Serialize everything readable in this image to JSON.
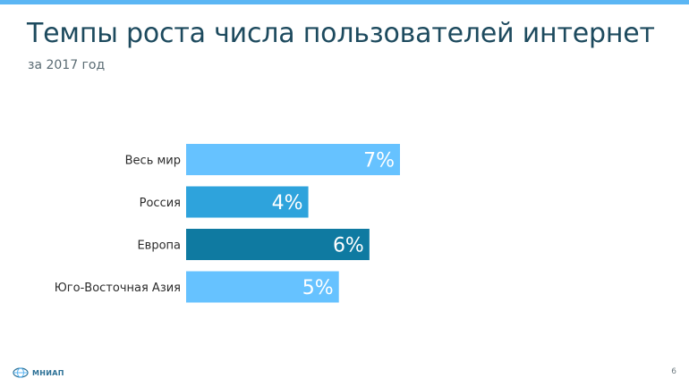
{
  "header": {
    "title": "Темпы роста числа пользователей интернет",
    "subtitle": "за 2017 год"
  },
  "chart_data": {
    "type": "bar",
    "orientation": "horizontal",
    "categories": [
      "Весь мир",
      "Россия",
      "Европа",
      "Юго-Восточная Азия"
    ],
    "values": [
      7,
      4,
      6,
      5
    ],
    "data_labels": [
      "7%",
      "4%",
      "6%",
      "5%"
    ],
    "colors": [
      "#66c2ff",
      "#2ea3dc",
      "#0f7aa1",
      "#66c2ff"
    ],
    "xlim": [
      0,
      7
    ],
    "grid": false,
    "legend": "none"
  },
  "footer": {
    "logo_text": "МНИАП",
    "logo_icon": "globe-icon",
    "page_number": "6"
  }
}
